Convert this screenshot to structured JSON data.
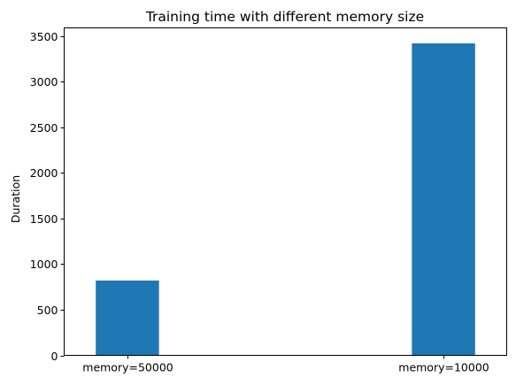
{
  "chart_data": {
    "type": "bar",
    "title": "Training time with different memory size",
    "xlabel": "",
    "ylabel": "Duration",
    "categories": [
      "memory=50000",
      "memory=10000"
    ],
    "values": [
      820,
      3420
    ],
    "ylim": [
      0,
      3590
    ],
    "yticks": [
      0,
      500,
      1000,
      1500,
      2000,
      2500,
      3000,
      3500
    ],
    "bar_color": "#1f77b4",
    "grid": false,
    "legend": "none"
  }
}
